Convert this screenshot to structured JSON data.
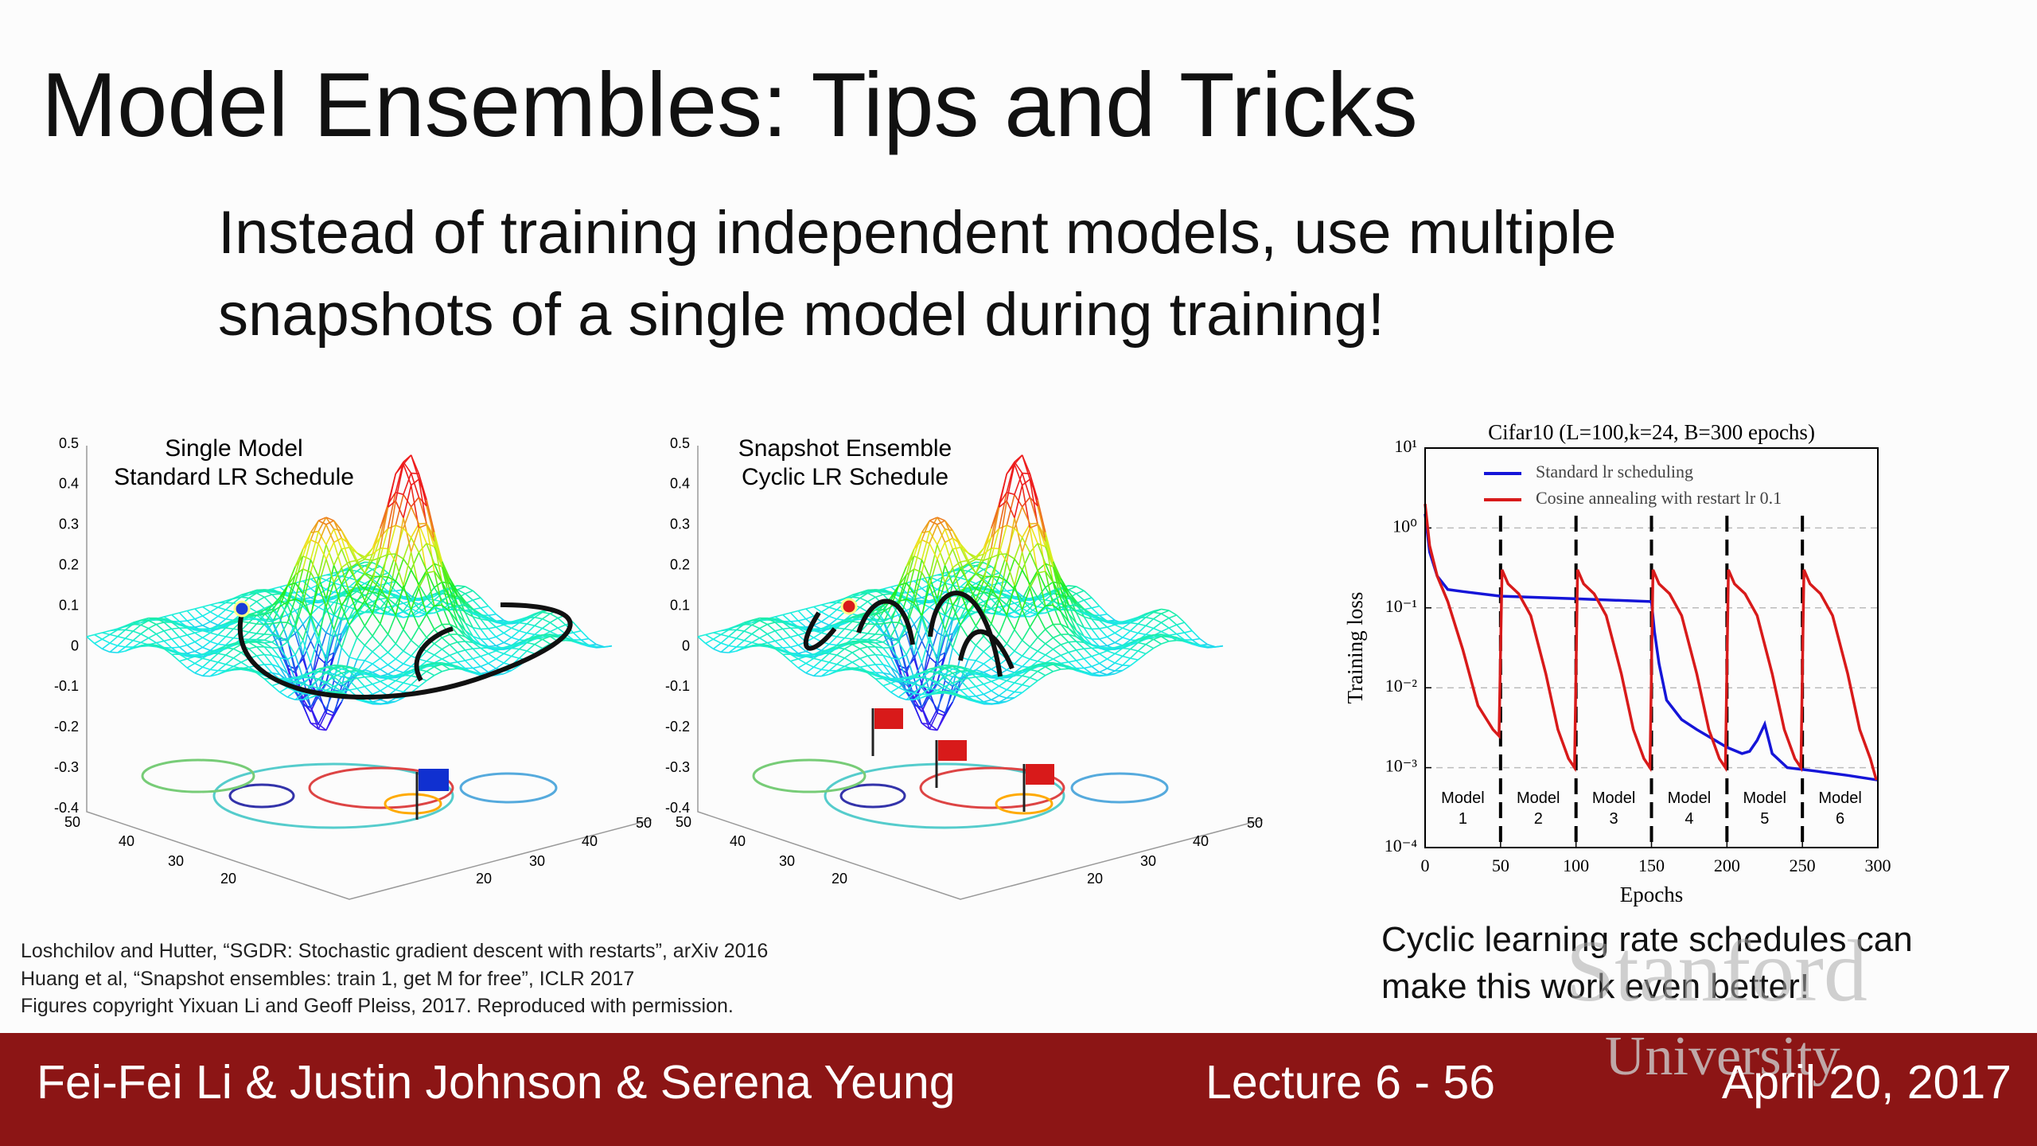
{
  "header": {
    "title": "Model Ensembles: Tips and Tricks",
    "subtitle_lines": [
      "Instead of training independent models, use multiple",
      "snapshots of a single model during training!"
    ]
  },
  "figures": [
    {
      "label_lines": [
        "Single Model",
        "Standard LR Schedule"
      ],
      "z_ticks": [
        "0.5",
        "0.4",
        "0.3",
        "0.2",
        "0.1",
        "0",
        "-0.1",
        "-0.2",
        "-0.3",
        "-0.4"
      ],
      "left_ticks": [
        "50",
        "40",
        "30",
        "20"
      ],
      "right_ticks": [
        "20",
        "30",
        "40",
        "50"
      ]
    },
    {
      "label_lines": [
        "Snapshot Ensemble",
        "Cyclic LR Schedule"
      ],
      "z_ticks": [
        "0.5",
        "0.4",
        "0.3",
        "0.2",
        "0.1",
        "0",
        "-0.1",
        "-0.2",
        "-0.3",
        "-0.4"
      ],
      "left_ticks": [
        "50",
        "40",
        "30",
        "20"
      ],
      "right_ticks": [
        "20",
        "30",
        "40",
        "50"
      ]
    }
  ],
  "chart_data": {
    "type": "line",
    "title": "Cifar10 (L=100,k=24, B=300 epochs)",
    "x_label": "Epochs",
    "y_label": "Training loss",
    "y_log": true,
    "xlim": [
      0,
      300
    ],
    "xticks": [
      0,
      50,
      100,
      150,
      200,
      250,
      300
    ],
    "ylim": [
      0.0001,
      10
    ],
    "yticks": [
      {
        "value": 10,
        "label": "10¹"
      },
      {
        "value": 1,
        "label": "10⁰"
      },
      {
        "value": 0.1,
        "label": "10⁻¹"
      },
      {
        "value": 0.01,
        "label": "10⁻²"
      },
      {
        "value": 0.001,
        "label": "10⁻³"
      },
      {
        "value": 0.0001,
        "label": "10⁻⁴"
      }
    ],
    "grid": true,
    "legend": "upper-left",
    "restarts": [
      50,
      100,
      150,
      200,
      250
    ],
    "model_labels": [
      [
        "Model",
        "1"
      ],
      [
        "Model",
        "2"
      ],
      [
        "Model",
        "3"
      ],
      [
        "Model",
        "4"
      ],
      [
        "Model",
        "5"
      ],
      [
        "Model",
        "6"
      ]
    ],
    "series": [
      {
        "name": "Standard lr scheduling",
        "color": "#1515d8",
        "x": [
          0,
          3,
          8,
          15,
          25,
          50,
          100,
          150,
          152,
          155,
          160,
          170,
          180,
          200,
          210,
          215,
          220,
          225,
          230,
          240,
          260,
          280,
          300
        ],
        "values": [
          1.5,
          0.5,
          0.25,
          0.17,
          0.16,
          0.14,
          0.13,
          0.12,
          0.05,
          0.02,
          0.007,
          0.004,
          0.003,
          0.0018,
          0.0015,
          0.0016,
          0.0022,
          0.0035,
          0.0015,
          0.001,
          0.0009,
          0.0008,
          0.0007
        ]
      },
      {
        "name": "Cosine annealing with restart lr 0.1",
        "color": "#d81a1a",
        "x": [
          0,
          3,
          8,
          15,
          25,
          35,
          45,
          49,
          51,
          55,
          62,
          70,
          80,
          88,
          95,
          99,
          101,
          105,
          112,
          120,
          130,
          138,
          145,
          149,
          151,
          155,
          162,
          170,
          180,
          188,
          195,
          199,
          201,
          205,
          212,
          220,
          230,
          238,
          245,
          249,
          251,
          255,
          262,
          270,
          280,
          288,
          295,
          299
        ],
        "values": [
          2,
          0.6,
          0.25,
          0.12,
          0.03,
          0.006,
          0.003,
          0.0025,
          0.3,
          0.2,
          0.15,
          0.08,
          0.015,
          0.003,
          0.0013,
          0.001,
          0.3,
          0.2,
          0.15,
          0.08,
          0.015,
          0.003,
          0.0013,
          0.001,
          0.3,
          0.2,
          0.15,
          0.08,
          0.015,
          0.003,
          0.0013,
          0.001,
          0.3,
          0.2,
          0.15,
          0.08,
          0.015,
          0.003,
          0.0013,
          0.001,
          0.3,
          0.2,
          0.15,
          0.08,
          0.015,
          0.003,
          0.0013,
          0.0007
        ]
      }
    ]
  },
  "caption_lines": [
    "Cyclic learning rate schedules can",
    "make this work even better!"
  ],
  "references": [
    "Loshchilov and Hutter, “SGDR: Stochastic gradient descent with restarts”, arXiv 2016",
    "Huang et al, “Snapshot ensembles: train 1, get M for free”, ICLR 2017",
    "Figures copyright Yixuan Li and Geoff Pleiss, 2017. Reproduced with permission."
  ],
  "watermark": [
    "Stanford",
    "University"
  ],
  "footer": {
    "authors": "Fei-Fei Li & Justin Johnson & Serena Yeung",
    "lecture": "Lecture 6 - 56",
    "date": "April 20, 2017"
  }
}
